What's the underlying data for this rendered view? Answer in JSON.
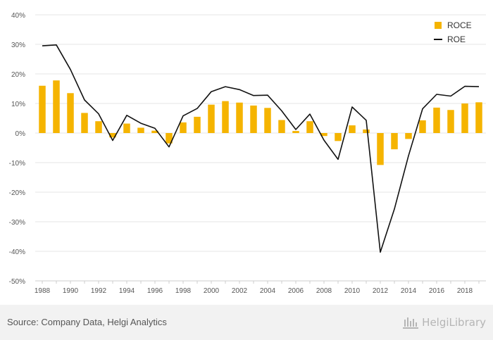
{
  "chart_data": {
    "type": "bar",
    "x": [
      1988,
      1989,
      1990,
      1991,
      1992,
      1993,
      1994,
      1995,
      1996,
      1997,
      1998,
      1999,
      2000,
      2001,
      2002,
      2003,
      2004,
      2005,
      2006,
      2007,
      2008,
      2009,
      2010,
      2011,
      2012,
      2013,
      2014,
      2015,
      2016,
      2017,
      2018,
      2019
    ],
    "x_tick_labels": [
      "1988",
      "1990",
      "1992",
      "1994",
      "1996",
      "1998",
      "2000",
      "2002",
      "2004",
      "2006",
      "2008",
      "2010",
      "2012",
      "2014",
      "2016",
      "2018"
    ],
    "y_tick_labels": [
      "40%",
      "30%",
      "20%",
      "10%",
      "0%",
      "-10%",
      "-20%",
      "-30%",
      "-40%",
      "-50%"
    ],
    "ylim": [
      -50,
      40
    ],
    "y_unit": "%",
    "grid": true,
    "legend_position": "top-right",
    "series": [
      {
        "name": "ROCE",
        "kind": "bar",
        "color": "#f5b400",
        "values": [
          16.0,
          17.8,
          13.5,
          6.8,
          4.0,
          -1.5,
          3.2,
          1.8,
          0.8,
          -3.5,
          3.6,
          5.5,
          9.6,
          10.8,
          10.3,
          9.3,
          8.5,
          4.4,
          0.7,
          4.0,
          -1.0,
          -2.7,
          2.6,
          1.2,
          -10.8,
          -5.5,
          -2.0,
          4.3,
          8.6,
          7.8,
          10.0,
          10.4
        ]
      },
      {
        "name": "ROE",
        "kind": "line",
        "color": "#111111",
        "values": [
          29.5,
          29.8,
          21.5,
          11.2,
          6.5,
          -2.5,
          6.0,
          3.3,
          1.6,
          -4.7,
          5.8,
          8.3,
          14.0,
          15.7,
          14.7,
          12.7,
          12.8,
          7.5,
          1.2,
          6.4,
          -2.4,
          -8.9,
          8.8,
          4.3,
          -40.3,
          -25.7,
          -7.7,
          8.2,
          13.1,
          12.5,
          15.8,
          15.7
        ]
      }
    ]
  },
  "footer": {
    "source": "Source: Company Data, Helgi Analytics",
    "logo_text": "HelgiLibrary"
  }
}
